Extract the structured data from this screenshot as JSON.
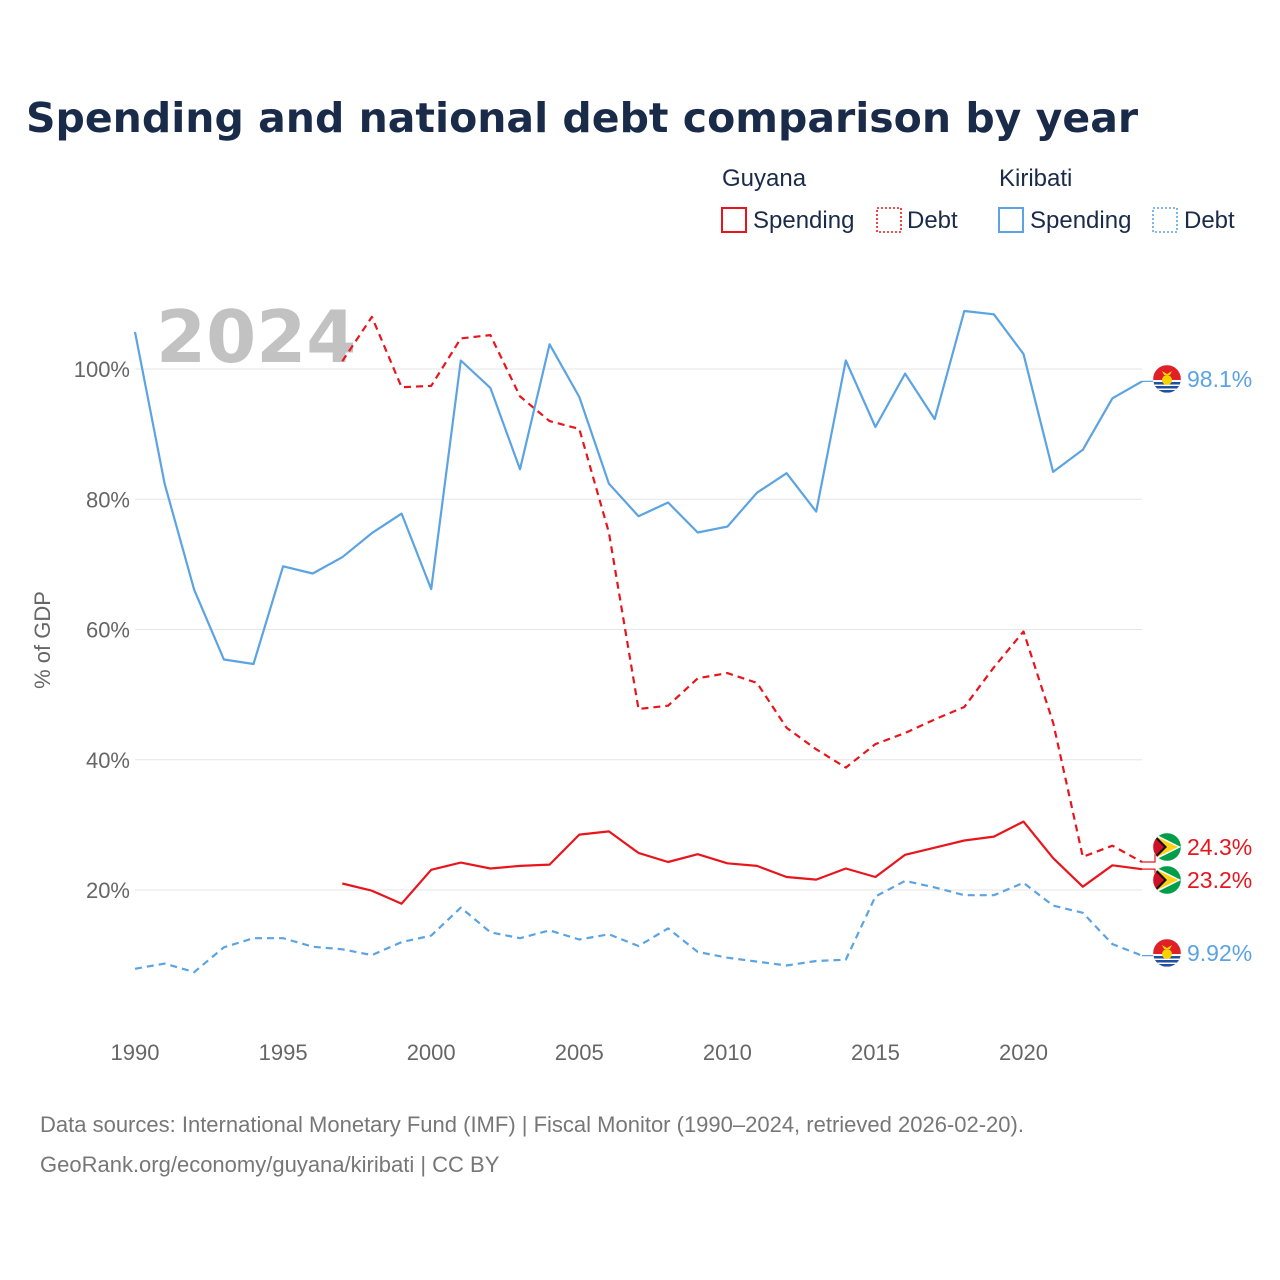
{
  "chart_data": {
    "type": "line",
    "title": "Spending and national debt comparison by year",
    "ylabel": "% of GDP",
    "xlabel": "",
    "xlim": [
      1990,
      2024
    ],
    "ylim": [
      0,
      120
    ],
    "x_ticks": [
      1990,
      1995,
      2000,
      2005,
      2010,
      2015,
      2020
    ],
    "x_tick_labels": [
      "1990",
      "1995",
      "2000",
      "2005",
      "2010",
      "2015",
      "2020"
    ],
    "y_ticks": [
      20,
      40,
      60,
      80,
      100
    ],
    "y_tick_labels": [
      "20%",
      "40%",
      "60%",
      "80%",
      "100%"
    ],
    "grid": true,
    "year_overlay": "2024",
    "legend": {
      "placement": "top-right",
      "groups": [
        {
          "name": "Guyana",
          "items": [
            "Spending",
            "Debt"
          ]
        },
        {
          "name": "Kiribati",
          "items": [
            "Spending",
            "Debt"
          ]
        }
      ]
    },
    "series": [
      {
        "name": "Guyana Spending",
        "country": "Guyana",
        "metric": "Spending",
        "style": "solid",
        "color": "#e8161c",
        "x": [
          1997,
          1998,
          1999,
          2000,
          2001,
          2002,
          2003,
          2004,
          2005,
          2006,
          2007,
          2008,
          2009,
          2010,
          2011,
          2012,
          2013,
          2014,
          2015,
          2016,
          2017,
          2018,
          2019,
          2020,
          2021,
          2022,
          2023,
          2024
        ],
        "values": [
          21.0,
          19.9,
          17.9,
          23.1,
          24.2,
          23.3,
          23.7,
          23.9,
          28.5,
          29.0,
          25.7,
          24.3,
          25.5,
          24.1,
          23.7,
          22.0,
          21.6,
          23.3,
          22.0,
          25.4,
          26.5,
          27.6,
          28.2,
          30.5,
          24.9,
          20.5,
          23.8,
          23.2
        ],
        "end_label": "23.2%"
      },
      {
        "name": "Guyana Debt",
        "country": "Guyana",
        "metric": "Debt",
        "style": "dashed",
        "color": "#e8161c",
        "x": [
          1997,
          1998,
          1999,
          2000,
          2001,
          2002,
          2003,
          2004,
          2005,
          2006,
          2007,
          2008,
          2009,
          2010,
          2011,
          2012,
          2013,
          2014,
          2015,
          2016,
          2017,
          2018,
          2019,
          2020,
          2021,
          2022,
          2023,
          2024
        ],
        "values": [
          101.2,
          108.0,
          97.2,
          97.4,
          104.7,
          105.2,
          95.8,
          92.0,
          90.8,
          74.9,
          47.8,
          48.3,
          52.5,
          53.3,
          51.8,
          44.9,
          41.6,
          38.8,
          42.4,
          44.1,
          46.2,
          48.1,
          54.2,
          59.7,
          45.7,
          25.1,
          26.8,
          24.3
        ],
        "end_label": "24.3%"
      },
      {
        "name": "Kiribati Spending",
        "country": "Kiribati",
        "metric": "Spending",
        "style": "solid",
        "color": "#5ba3e3",
        "x": [
          1990,
          1991,
          1992,
          1993,
          1994,
          1995,
          1996,
          1997,
          1998,
          1999,
          2000,
          2001,
          2002,
          2003,
          2004,
          2005,
          2006,
          2007,
          2008,
          2009,
          2010,
          2011,
          2012,
          2013,
          2014,
          2015,
          2016,
          2017,
          2018,
          2019,
          2020,
          2021,
          2022,
          2023,
          2024
        ],
        "values": [
          105.7,
          82.4,
          66.1,
          55.4,
          54.7,
          69.7,
          68.6,
          71.1,
          74.8,
          77.8,
          66.2,
          101.3,
          97.1,
          84.6,
          103.8,
          95.7,
          82.4,
          77.4,
          79.5,
          74.9,
          75.8,
          81.0,
          84.0,
          78.1,
          101.3,
          91.1,
          99.3,
          92.3,
          108.9,
          108.4,
          102.3,
          84.2,
          87.6,
          95.5,
          98.1
        ],
        "end_label": "98.1%"
      },
      {
        "name": "Kiribati Debt",
        "country": "Kiribati",
        "metric": "Debt",
        "style": "dashed",
        "color": "#5ba3e3",
        "x": [
          1990,
          1991,
          1992,
          1993,
          1994,
          1995,
          1996,
          1997,
          1998,
          1999,
          2000,
          2001,
          2002,
          2003,
          2004,
          2005,
          2006,
          2007,
          2008,
          2009,
          2010,
          2011,
          2012,
          2013,
          2014,
          2015,
          2016,
          2017,
          2018,
          2019,
          2020,
          2021,
          2022,
          2023,
          2024
        ],
        "values": [
          7.9,
          8.7,
          7.4,
          11.2,
          12.6,
          12.6,
          11.3,
          10.9,
          10.0,
          12.0,
          13.0,
          17.3,
          13.5,
          12.6,
          13.8,
          12.4,
          13.2,
          11.4,
          14.1,
          10.5,
          9.6,
          9.0,
          8.4,
          9.1,
          9.3,
          19.0,
          21.4,
          20.4,
          19.2,
          19.2,
          21.1,
          17.6,
          16.5,
          11.7,
          9.92
        ],
        "end_label": "9.92%"
      }
    ],
    "source_lines": [
      "Data sources: International Monetary Fund (IMF) | Fiscal Monitor (1990–2024, retrieved 2026-02-20).",
      "GeoRank.org/economy/guyana/kiribati | CC BY"
    ]
  }
}
